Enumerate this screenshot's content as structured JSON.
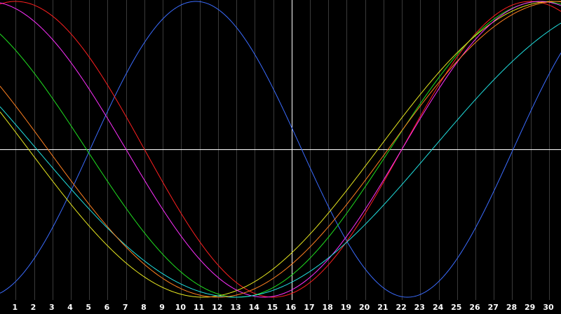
{
  "chart_data": {
    "type": "line",
    "title": "",
    "xlabel": "",
    "ylabel": "",
    "x_ticks": [
      "1",
      "2",
      "3",
      "4",
      "5",
      "6",
      "7",
      "8",
      "9",
      "10",
      "11",
      "12",
      "13",
      "14",
      "15",
      "16",
      "17",
      "18",
      "19",
      "20",
      "21",
      "22",
      "23",
      "24",
      "25",
      "26",
      "27",
      "28",
      "29",
      "30"
    ],
    "xlim": [
      0.15,
      30.65
    ],
    "ylim": [
      -1,
      1
    ],
    "grid": true,
    "crosshair": {
      "x": 16.0,
      "y": 0
    },
    "colors": {
      "background": "#000000",
      "grid": "#3a3a3a",
      "crosshair": "#ffffff",
      "tick_text": "#ffffff"
    },
    "series": [
      {
        "color": "#3b6cff",
        "period": 23,
        "peak_day": 10.8
      },
      {
        "color": "#ff2020",
        "period": 28,
        "peak_day": 1.0
      },
      {
        "color": "#20e020",
        "period": 33,
        "peak_day": 29.6
      },
      {
        "color": "#e8e820",
        "period": 38,
        "peak_day": 30.2
      },
      {
        "color": "#ff30ff",
        "period": 30,
        "peak_day": 29.5
      },
      {
        "color": "#20e0e0",
        "period": 43,
        "peak_day": 34.4
      },
      {
        "color": "#ff8020",
        "period": 37,
        "peak_day": 30.5
      }
    ]
  }
}
